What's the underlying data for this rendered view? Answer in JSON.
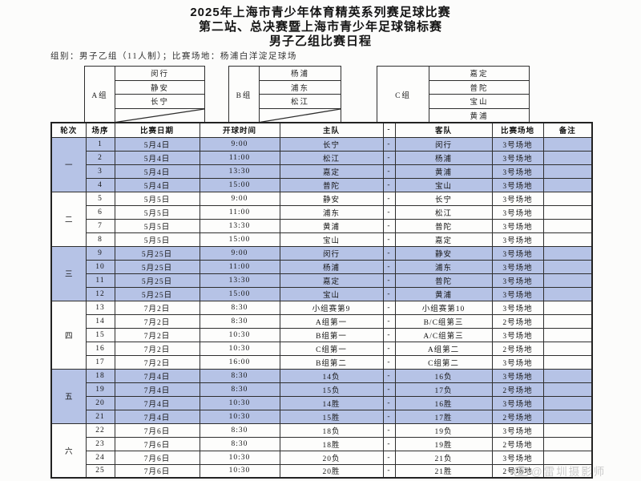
{
  "title": {
    "line1": "2025年上海市青少年体育精英系列赛足球比赛",
    "line2": "第二站、总决赛暨上海市青少年足球锦标赛",
    "line3": "男子乙组比赛日程"
  },
  "info_line": "组别：男子乙组（11人制）；比赛场地：杨浦白洋淀足球场",
  "groups": [
    {
      "label": "A组",
      "teams": [
        "闵行",
        "静安",
        "长宁"
      ],
      "empty_diagonal_row": true
    },
    {
      "label": "B组",
      "teams": [
        "杨浦",
        "浦东",
        "松江"
      ],
      "empty_diagonal_row": true
    },
    {
      "label": "C组",
      "teams": [
        "嘉定",
        "普陀",
        "宝山",
        "黄浦"
      ],
      "empty_diagonal_row": false
    }
  ],
  "schedule": {
    "headers": [
      "轮次",
      "场序",
      "比赛日期",
      "开球时间",
      "主队",
      "-",
      "客队",
      "比赛场地",
      "备注"
    ],
    "vs_separator": "-",
    "rounds": [
      {
        "name": "一",
        "highlighted": true,
        "matches": [
          {
            "no": "1",
            "date": "5月4日",
            "time": "9:00",
            "home": "长宁",
            "away": "闵行",
            "venue": "3号场地",
            "note": ""
          },
          {
            "no": "2",
            "date": "5月4日",
            "time": "11:00",
            "home": "松江",
            "away": "杨浦",
            "venue": "3号场地",
            "note": ""
          },
          {
            "no": "3",
            "date": "5月4日",
            "time": "13:30",
            "home": "嘉定",
            "away": "黄浦",
            "venue": "3号场地",
            "note": ""
          },
          {
            "no": "4",
            "date": "5月4日",
            "time": "15:00",
            "home": "普陀",
            "away": "宝山",
            "venue": "3号场地",
            "note": ""
          }
        ]
      },
      {
        "name": "二",
        "highlighted": false,
        "matches": [
          {
            "no": "5",
            "date": "5月5日",
            "time": "9:00",
            "home": "静安",
            "away": "长宁",
            "venue": "3号场地",
            "note": ""
          },
          {
            "no": "6",
            "date": "5月5日",
            "time": "11:00",
            "home": "浦东",
            "away": "松江",
            "venue": "3号场地",
            "note": ""
          },
          {
            "no": "7",
            "date": "5月5日",
            "time": "13:30",
            "home": "黄浦",
            "away": "普陀",
            "venue": "3号场地",
            "note": ""
          },
          {
            "no": "8",
            "date": "5月5日",
            "time": "15:00",
            "home": "宝山",
            "away": "嘉定",
            "venue": "3号场地",
            "note": ""
          }
        ]
      },
      {
        "name": "三",
        "highlighted": true,
        "matches": [
          {
            "no": "9",
            "date": "5月25日",
            "time": "9:00",
            "home": "闵行",
            "away": "静安",
            "venue": "3号场地",
            "note": ""
          },
          {
            "no": "10",
            "date": "5月25日",
            "time": "11:00",
            "home": "杨浦",
            "away": "浦东",
            "venue": "3号场地",
            "note": ""
          },
          {
            "no": "11",
            "date": "5月25日",
            "time": "13:30",
            "home": "嘉定",
            "away": "普陀",
            "venue": "3号场地",
            "note": ""
          },
          {
            "no": "12",
            "date": "5月25日",
            "time": "15:00",
            "home": "宝山",
            "away": "黄浦",
            "venue": "3号场地",
            "note": ""
          }
        ]
      },
      {
        "name": "四",
        "highlighted": false,
        "matches": [
          {
            "no": "13",
            "date": "7月2日",
            "time": "8:30",
            "home": "小组赛第9",
            "away": "小组赛第10",
            "venue": "3号场地",
            "note": ""
          },
          {
            "no": "14",
            "date": "7月2日",
            "time": "8:30",
            "home": "A组第一",
            "away": "B/C组第三",
            "venue": "2号场地",
            "note": ""
          },
          {
            "no": "15",
            "date": "7月2日",
            "time": "10:30",
            "home": "B组第一",
            "away": "A/C组第三",
            "venue": "3号场地",
            "note": ""
          },
          {
            "no": "16",
            "date": "7月2日",
            "time": "10:30",
            "home": "C组第一",
            "away": "A组第二",
            "venue": "2号场地",
            "note": ""
          },
          {
            "no": "17",
            "date": "7月2日",
            "time": "16:00",
            "home": "B组第二",
            "away": "C组第二",
            "venue": "3号场地",
            "note": ""
          }
        ]
      },
      {
        "name": "五",
        "highlighted": true,
        "matches": [
          {
            "no": "18",
            "date": "7月4日",
            "time": "8:30",
            "home": "14负",
            "away": "16负",
            "venue": "3号场地",
            "note": ""
          },
          {
            "no": "19",
            "date": "7月4日",
            "time": "8:30",
            "home": "15负",
            "away": "17负",
            "venue": "2号场地",
            "note": ""
          },
          {
            "no": "20",
            "date": "7月4日",
            "time": "10:30",
            "home": "14胜",
            "away": "16胜",
            "venue": "3号场地",
            "note": ""
          },
          {
            "no": "21",
            "date": "7月4日",
            "time": "10:30",
            "home": "15胜",
            "away": "17胜",
            "venue": "2号场地",
            "note": ""
          }
        ]
      },
      {
        "name": "六",
        "highlighted": false,
        "matches": [
          {
            "no": "22",
            "date": "7月6日",
            "time": "8:30",
            "home": "18负",
            "away": "19负",
            "venue": "3号场地",
            "note": ""
          },
          {
            "no": "23",
            "date": "7月6日",
            "time": "8:30",
            "home": "18胜",
            "away": "19胜",
            "venue": "2号场地",
            "note": ""
          },
          {
            "no": "24",
            "date": "7月6日",
            "time": "10:30",
            "home": "20负",
            "away": "21负",
            "venue": "3号场地",
            "note": ""
          },
          {
            "no": "25",
            "date": "7月6日",
            "time": "10:30",
            "home": "20胜",
            "away": "21胜",
            "venue": "2号场地",
            "note": ""
          }
        ]
      }
    ]
  },
  "watermark": "@雷圳摄影师",
  "colors": {
    "row_highlight": "#b6c3e6",
    "border": "#2e2e2e",
    "watermark": "#c4c4c4"
  }
}
